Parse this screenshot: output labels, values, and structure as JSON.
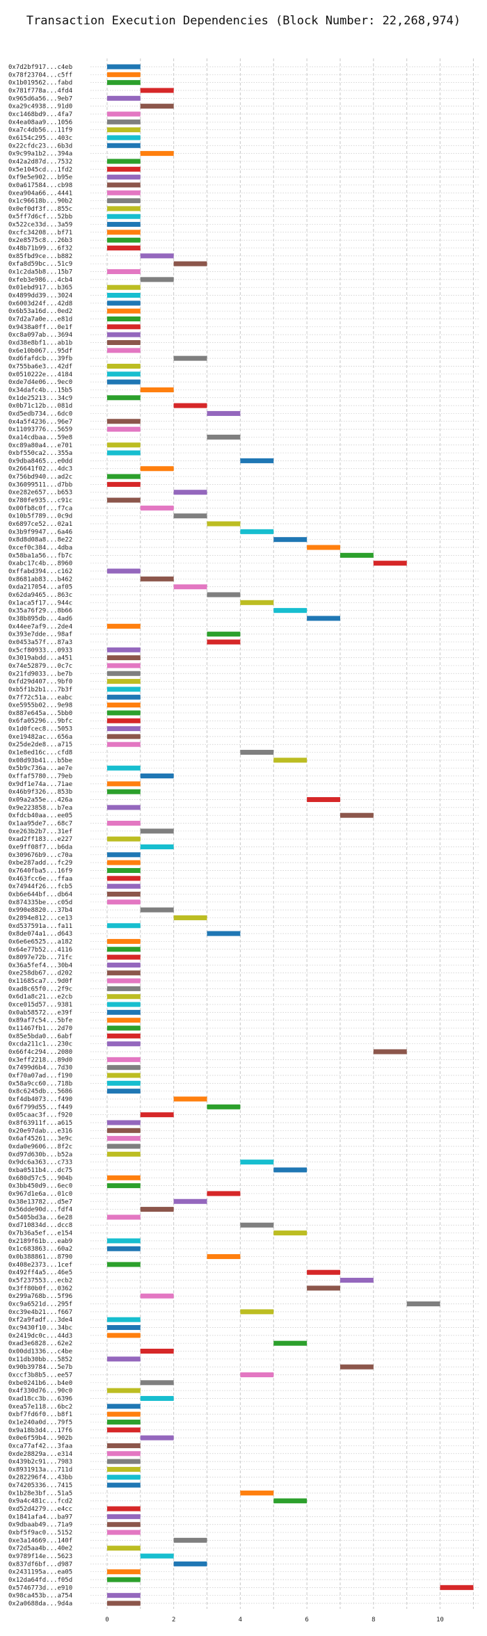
{
  "chart_data": {
    "type": "bar",
    "orientation": "horizontal-gantt",
    "title": "Transaction Execution Dependencies (Block Number: 22,268,974)",
    "xlabel": "",
    "ylabel": "",
    "xlim": [
      -0.5,
      11.2
    ],
    "xticks": [
      0,
      2,
      4,
      6,
      8,
      10
    ],
    "grid": true,
    "palette": [
      "#1f77b4",
      "#ff7f0e",
      "#2ca02c",
      "#d62728",
      "#9467bd",
      "#8c564b",
      "#e377c2",
      "#7f7f7f",
      "#bcbd22",
      "#17becf"
    ],
    "rows": [
      [
        "0x7d2bf917...c4eb",
        0
      ],
      [
        "0x78f23704...c5ff",
        0
      ],
      [
        "0x1b019562...fabd",
        0
      ],
      [
        "0x781f778a...4fd4",
        1
      ],
      [
        "0x965d6a56...9eb7",
        0
      ],
      [
        "0xa29c4938...91d0",
        1
      ],
      [
        "0xc1468bd9...4fa7",
        0
      ],
      [
        "0x4ea08aa9...1056",
        0
      ],
      [
        "0xa7c4db56...11f9",
        0
      ],
      [
        "0x6154c295...403c",
        0
      ],
      [
        "0x22cfdc23...6b3d",
        0
      ],
      [
        "0x9c99a1b2...394a",
        1
      ],
      [
        "0x42a2d87d...7532",
        0
      ],
      [
        "0x5e1045cd...1fd2",
        0
      ],
      [
        "0xf9e5e902...b95e",
        0
      ],
      [
        "0x0a617584...cb98",
        0
      ],
      [
        "0xea904a66...4441",
        0
      ],
      [
        "0x1c96618b...90b2",
        0
      ],
      [
        "0x0ef0df3f...855c",
        0
      ],
      [
        "0x5ff7d6cf...52bb",
        0
      ],
      [
        "0x522ce33d...3a59",
        0
      ],
      [
        "0xcfc34208...bf71",
        0
      ],
      [
        "0x2e8575c8...26b3",
        0
      ],
      [
        "0x48b71b99...6f32",
        0
      ],
      [
        "0x85fbd9ce...b882",
        1
      ],
      [
        "0xfa8d59bc...51c9",
        2
      ],
      [
        "0x1c2da5b8...15b7",
        0
      ],
      [
        "0xfeb3e986...4cb4",
        1
      ],
      [
        "0x01ebd917...b365",
        0
      ],
      [
        "0x4899dd39...3024",
        0
      ],
      [
        "0x6003d24f...42d8",
        0
      ],
      [
        "0x6b53a16d...0ed2",
        0
      ],
      [
        "0x7d2a7a0e...e81d",
        0
      ],
      [
        "0x9438a0ff...0e1f",
        0
      ],
      [
        "0xc8a097ab...3694",
        0
      ],
      [
        "0xd38e8bf1...ab1b",
        0
      ],
      [
        "0x6e10b067...95df",
        0
      ],
      [
        "0xd6fafdcb...39fb",
        2
      ],
      [
        "0x755ba6e3...42df",
        0
      ],
      [
        "0x0510222e...4184",
        0
      ],
      [
        "0xde7d4e06...9ec0",
        0
      ],
      [
        "0x34dafc4b...15b5",
        1
      ],
      [
        "0x1de25213...34c9",
        0
      ],
      [
        "0x0b71c12b...081d",
        2
      ],
      [
        "0xd5edb734...6dc0",
        3
      ],
      [
        "0x4a5f4236...96e7",
        0
      ],
      [
        "0x11093776...5659",
        0
      ],
      [
        "0xa14cdbaa...59e8",
        3
      ],
      [
        "0xc89a80a4...e701",
        0
      ],
      [
        "0xbf550ca2...355a",
        0
      ],
      [
        "0x9dba8465...e0dd",
        4
      ],
      [
        "0x26641f02...4dc3",
        1
      ],
      [
        "0x756bd940...ad2c",
        0
      ],
      [
        "0x36099511...d7bb",
        0
      ],
      [
        "0xe282e657...b653",
        2
      ],
      [
        "0x780fe935...c91c",
        0
      ],
      [
        "0x00fb8c0f...f7ca",
        1
      ],
      [
        "0x10b5f789...0c9d",
        2
      ],
      [
        "0x6897ce52...02a1",
        3
      ],
      [
        "0x3b9f9947...6a46",
        4
      ],
      [
        "0x8d8d08a8...8e22",
        5
      ],
      [
        "0xcef0c384...4dba",
        6
      ],
      [
        "0x58ba1a56...fb7c",
        7
      ],
      [
        "0xabc17c4b...8960",
        8
      ],
      [
        "0xffabd394...c162",
        0
      ],
      [
        "0x8681ab83...b462",
        1
      ],
      [
        "0xda217054...af05",
        2
      ],
      [
        "0x62da9465...863c",
        3
      ],
      [
        "0x1aca5f17...944c",
        4
      ],
      [
        "0x35a76f29...8b66",
        5
      ],
      [
        "0x38b895db...4ad6",
        6
      ],
      [
        "0x44ee7af9...2de4",
        0
      ],
      [
        "0x393e7dde...98af",
        3
      ],
      [
        "0x0453a57f...87a3",
        3
      ],
      [
        "0x5cf80933...0933",
        0
      ],
      [
        "0x3019abdd...a451",
        0
      ],
      [
        "0x74e52879...0c7c",
        0
      ],
      [
        "0x21fd9033...be7b",
        0
      ],
      [
        "0xfd29d407...9bf0",
        0
      ],
      [
        "0xb5f1b2b1...7b3f",
        0
      ],
      [
        "0x7f72c51a...eabc",
        0
      ],
      [
        "0xe5955b02...9e98",
        0
      ],
      [
        "0x887e645a...5bb0",
        0
      ],
      [
        "0x6fa05296...9bfc",
        0
      ],
      [
        "0x1d0fcec8...5053",
        0
      ],
      [
        "0xe19482ac...656a",
        0
      ],
      [
        "0x25de2de8...a715",
        0
      ],
      [
        "0x1e8ed16c...cfd8",
        4
      ],
      [
        "0x08d93b41...b5be",
        5
      ],
      [
        "0x5b9c736a...ae7e",
        0
      ],
      [
        "0xffaf5780...79eb",
        1
      ],
      [
        "0x9df1e74a...71ae",
        0
      ],
      [
        "0x46b9f326...853b",
        0
      ],
      [
        "0x09a2a55e...426a",
        6
      ],
      [
        "0x9e223858...b7ea",
        0
      ],
      [
        "0xfdcb40aa...ee05",
        7
      ],
      [
        "0x1aa95de7...68c7",
        0
      ],
      [
        "0xe263b2b7...31ef",
        1
      ],
      [
        "0xad2ff183...e227",
        0
      ],
      [
        "0xe9ff08f7...b6da",
        1
      ],
      [
        "0x309676b9...c70a",
        0
      ],
      [
        "0xbe287add...fc29",
        0
      ],
      [
        "0x7640fba5...16f9",
        0
      ],
      [
        "0x463fcc6e...ffaa",
        0
      ],
      [
        "0x74944f26...fcb5",
        0
      ],
      [
        "0xb6e644bf...db64",
        0
      ],
      [
        "0x874335be...c05d",
        0
      ],
      [
        "0x990e8820...37b4",
        1
      ],
      [
        "0x2894e812...ce13",
        2
      ],
      [
        "0xd537591a...fa11",
        0
      ],
      [
        "0x8de074a1...d643",
        3
      ],
      [
        "0x6e6e6525...a182",
        0
      ],
      [
        "0x64e77b52...4116",
        0
      ],
      [
        "0x8097e72b...71fc",
        0
      ],
      [
        "0x36a5fef4...30b4",
        0
      ],
      [
        "0xe258db67...d202",
        0
      ],
      [
        "0x11685ca7...9d0f",
        0
      ],
      [
        "0xad8c65f0...2f9c",
        0
      ],
      [
        "0x6d1a8c21...e2cb",
        0
      ],
      [
        "0xce015d57...9381",
        0
      ],
      [
        "0x0ab58572...e39f",
        0
      ],
      [
        "0x89af7c54...5bfe",
        0
      ],
      [
        "0x11467fb1...2d70",
        0
      ],
      [
        "0x85e5bda0...6abf",
        0
      ],
      [
        "0xcda211c1...230c",
        0
      ],
      [
        "0x66f4c294...2080",
        8
      ],
      [
        "0x3eff2218...89d0",
        0
      ],
      [
        "0x7499d6b4...7d30",
        0
      ],
      [
        "0xf70a07ad...f190",
        0
      ],
      [
        "0x58a9cc60...718b",
        0
      ],
      [
        "0x8c6245db...5686",
        0
      ],
      [
        "0xf4db4073...f490",
        2
      ],
      [
        "0x6f799d55...f449",
        3
      ],
      [
        "0x05caac3f...f920",
        1
      ],
      [
        "0x8f63911f...a615",
        0
      ],
      [
        "0x20e97dab...e316",
        0
      ],
      [
        "0x6af45261...3e9c",
        0
      ],
      [
        "0xda0e9606...8f2c",
        0
      ],
      [
        "0xd97d630b...b52a",
        0
      ],
      [
        "0x9dc6a363...c733",
        4
      ],
      [
        "0xba0511b4...dc75",
        5
      ],
      [
        "0x680d57c5...904b",
        0
      ],
      [
        "0x3bb450d9...6ec0",
        0
      ],
      [
        "0x967d1e6a...01c0",
        3
      ],
      [
        "0x38e13782...d5e7",
        2
      ],
      [
        "0x56dde90d...fdf4",
        1
      ],
      [
        "0x5405bd3a...6e28",
        0
      ],
      [
        "0xd710834d...dcc8",
        4
      ],
      [
        "0x7b36a5ef...e154",
        5
      ],
      [
        "0x2189f61b...eab9",
        0
      ],
      [
        "0x1c683863...60a2",
        0
      ],
      [
        "0x0b388861...8790",
        3
      ],
      [
        "0x408e2373...1cef",
        0
      ],
      [
        "0x492ff4a5...46e5",
        6
      ],
      [
        "0x5f237553...ecb2",
        7
      ],
      [
        "0x3ff80b0f...0362",
        6
      ],
      [
        "0x299a768b...5f96",
        1
      ],
      [
        "0xc9a6521d...295f",
        9
      ],
      [
        "0xc39e4b21...f667",
        4
      ],
      [
        "0xf2a9fadf...3de4",
        0
      ],
      [
        "0xc9430f10...34bc",
        0
      ],
      [
        "0x2419dc0c...44d3",
        0
      ],
      [
        "0xad3e6828...62e2",
        5
      ],
      [
        "0x00dd1336...c4be",
        1
      ],
      [
        "0x11db30bb...5852",
        0
      ],
      [
        "0x90b39784...5e7b",
        7
      ],
      [
        "0xccf3b8b5...ee57",
        4
      ],
      [
        "0xbe0241b6...b4e0",
        1
      ],
      [
        "0x4f330d76...90c0",
        0
      ],
      [
        "0xad18cc3b...6396",
        1
      ],
      [
        "0xea57e118...6bc2",
        0
      ],
      [
        "0xbf7fd6f0...b8f1",
        0
      ],
      [
        "0x1e240a0d...79f5",
        0
      ],
      [
        "0x9a18b3d4...17f6",
        0
      ],
      [
        "0x0e6f59b4...902b",
        1
      ],
      [
        "0xca77af42...3faa",
        0
      ],
      [
        "0xde28829a...e314",
        0
      ],
      [
        "0x439b2c91...7983",
        0
      ],
      [
        "0x8931913a...711d",
        0
      ],
      [
        "0x282296f4...43bb",
        0
      ],
      [
        "0x74205336...7415",
        0
      ],
      [
        "0x1b28e3bf...51a5",
        4
      ],
      [
        "0x9a4c481c...fcd2",
        5
      ],
      [
        "0xd52d4279...e4cc",
        0
      ],
      [
        "0x1841afa4...ba97",
        0
      ],
      [
        "0x9dbaab49...71a9",
        0
      ],
      [
        "0xbf5f9ac0...5152",
        0
      ],
      [
        "0xe3a14669...140f",
        2
      ],
      [
        "0x72d5aa4b...40e2",
        0
      ],
      [
        "0x9789f14e...5623",
        1
      ],
      [
        "0x837df6bf...d987",
        2
      ],
      [
        "0x2431195a...ea05",
        0
      ],
      [
        "0x12da64fd...f05d",
        0
      ],
      [
        "0x5746773d...e910",
        10
      ],
      [
        "0x98ca453b...a754",
        0
      ],
      [
        "0x2a0688da...9d4a",
        0
      ]
    ]
  }
}
